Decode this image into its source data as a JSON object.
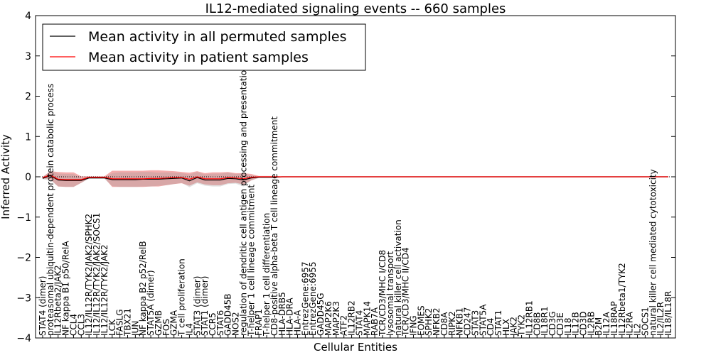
{
  "chart_data": {
    "type": "line",
    "title": "IL12-mediated signaling events -- 660 samples",
    "xlabel": "Cellular Entities",
    "ylabel": "Inferred Activity",
    "ylim": [
      -4,
      4
    ],
    "yticks": [
      "−4",
      "−3",
      "−2",
      "−1",
      "0",
      "1",
      "2",
      "3",
      "4"
    ],
    "legend_position": "top-left",
    "categories": [
      "STAT4 (dimer)",
      "proteasomal ubiquitin-dependent protein catabolic process",
      "IL12Rbeta2/JAK2",
      "NF kappa B1 p50/RelA",
      "CCL4",
      "CCL3",
      "IL12/IL12R/TYK2/JAK2/SPHK2",
      "IL12/IL12R/TYK2/JAK2/SOCS1",
      "IL12/IL12R/TYK2/JAK2",
      "LCK",
      "FASLG",
      "TBX21",
      "JUN",
      "NF kappa B2 p52/RelB",
      "STAT5A (dimer)",
      "GZMB",
      "FOS",
      "GZMA",
      "T cell proliferation",
      "IL4",
      "STAT3 (dimer)",
      "STAT1 (dimer)",
      "CCR5",
      "STAT6",
      "GADD45B",
      "NOS2",
      "regulation of dendritic cell antigen processing and presentation",
      "T-helper 1 cell lineage commitment",
      "FRAP1",
      "T-helper 1 cell differentiation",
      "CD8-positive alpha-beta T cell lineage commitment",
      "HLA-DRB5",
      "HLA-DRA",
      "HLA-A",
      "EntrezGene:6957",
      "EntrezGene:6955",
      "GADD45G",
      "MAP2K6",
      "MAP2K3",
      "ATF2",
      "IL12RB2",
      "STAT4",
      "MAPK14",
      "RAB7A",
      "TCR/CD3/MHC I/CD8",
      "lysosomal transport",
      "natural killer cell activation",
      "TCR/CD3/MHC II/CD4",
      "IFNG",
      "EOMES",
      "SPHK2",
      "NFKB2",
      "CD8A",
      "RIPK2",
      "NFKB1",
      "CD247",
      "STAT3",
      "STAT5A",
      "CD4",
      "STAT1",
      "HLX",
      "JAK2",
      "TYK2",
      "IL12RB1",
      "CD8B",
      "IL18R1",
      "CD3G",
      "CD3E",
      "IL18",
      "IL12B",
      "CD3D",
      "IL2RB",
      "B2M",
      "IL12A",
      "IL18RAP",
      "IL12Rbeta1/TYK2",
      "IL2RA",
      "IL2",
      "SOCS1",
      "natural killer cell mediated cytotoxicity",
      "IL2/IL2R",
      "IL18/IL18R"
    ],
    "series": [
      {
        "name": "Mean activity in all permuted samples",
        "color": "#000000",
        "values": [
          -0.04,
          0.03,
          -0.08,
          -0.09,
          -0.09,
          -0.09,
          -0.03,
          -0.03,
          -0.03,
          -0.07,
          -0.07,
          -0.07,
          -0.07,
          -0.06,
          -0.06,
          -0.06,
          -0.05,
          -0.04,
          -0.03,
          -0.1,
          -0.02,
          -0.08,
          -0.08,
          -0.08,
          -0.04,
          -0.05,
          -0.08,
          -0.03,
          -0.01,
          -0.01,
          -0.01,
          0.0,
          0.0,
          0.0,
          0.0,
          0.0,
          0.0,
          0.0,
          0.0,
          0.0,
          0.0,
          0.0,
          0.0,
          0.0,
          0.0,
          0.0,
          0.0,
          0.0,
          0.0,
          0.0,
          0.0,
          0.0,
          0.0,
          0.0,
          0.0,
          0.0,
          0.0,
          0.0,
          0.0,
          0.0,
          0.0,
          0.0,
          0.0,
          0.0,
          0.0,
          0.0,
          0.0,
          0.0,
          0.0,
          0.0,
          0.0,
          0.0,
          0.0,
          0.0,
          0.0,
          0.0,
          0.0,
          0.0,
          0.0,
          0.0,
          0.0,
          0.0
        ],
        "band": [
          0.02,
          0.12,
          0.16,
          0.16,
          0.16,
          0.06,
          0.02,
          0.02,
          0.02,
          0.16,
          0.18,
          0.18,
          0.18,
          0.18,
          0.18,
          0.16,
          0.16,
          0.14,
          0.12,
          0.16,
          0.14,
          0.14,
          0.16,
          0.16,
          0.14,
          0.12,
          0.16,
          0.06,
          0.02,
          0.02,
          0.02,
          0.01,
          0.01,
          0.01,
          0.01,
          0.01,
          0.01,
          0.01,
          0.01,
          0.01,
          0.01,
          0.01,
          0.01,
          0.01,
          0.01,
          0.01,
          0.01,
          0.01,
          0.01,
          0.01,
          0.01,
          0.01,
          0.01,
          0.01,
          0.01,
          0.01,
          0.01,
          0.01,
          0.01,
          0.01,
          0.01,
          0.01,
          0.01,
          0.01,
          0.01,
          0.01,
          0.01,
          0.01,
          0.01,
          0.01,
          0.01,
          0.01,
          0.01,
          0.01,
          0.01,
          0.01,
          0.01,
          0.01,
          0.01,
          0.01,
          0.01,
          0.01
        ]
      },
      {
        "name": "Mean activity in patient samples",
        "color": "#ff0000",
        "values": [
          -0.02,
          0.04,
          -0.06,
          -0.07,
          -0.07,
          -0.07,
          -0.01,
          -0.01,
          -0.01,
          -0.05,
          -0.05,
          -0.05,
          -0.05,
          -0.05,
          -0.04,
          -0.04,
          -0.03,
          -0.02,
          -0.02,
          -0.06,
          0.0,
          -0.05,
          -0.05,
          -0.05,
          -0.02,
          -0.03,
          -0.05,
          -0.01,
          0.0,
          0.0,
          0.0,
          0.0,
          0.0,
          0.0,
          0.0,
          0.0,
          0.0,
          0.0,
          0.0,
          0.0,
          0.0,
          0.0,
          0.0,
          0.0,
          0.0,
          0.0,
          0.0,
          0.0,
          0.0,
          0.0,
          0.0,
          0.0,
          0.0,
          0.0,
          0.0,
          0.0,
          0.0,
          0.0,
          0.0,
          0.0,
          0.0,
          0.0,
          0.0,
          0.0,
          0.0,
          0.0,
          0.0,
          0.0,
          0.0,
          0.0,
          0.0,
          0.0,
          0.0,
          0.0,
          0.0,
          0.0,
          0.0,
          0.0,
          0.0,
          0.0,
          0.0,
          0.0
        ],
        "band": [
          0.02,
          0.1,
          0.18,
          0.18,
          0.18,
          0.08,
          0.02,
          0.02,
          0.02,
          0.2,
          0.2,
          0.2,
          0.2,
          0.2,
          0.2,
          0.2,
          0.18,
          0.16,
          0.14,
          0.16,
          0.14,
          0.14,
          0.16,
          0.16,
          0.14,
          0.12,
          0.14,
          0.08,
          0.02,
          0.02,
          0.02,
          0.01,
          0.01,
          0.01,
          0.01,
          0.01,
          0.01,
          0.01,
          0.01,
          0.01,
          0.01,
          0.01,
          0.01,
          0.01,
          0.01,
          0.01,
          0.01,
          0.01,
          0.01,
          0.01,
          0.01,
          0.01,
          0.01,
          0.01,
          0.01,
          0.01,
          0.01,
          0.01,
          0.01,
          0.01,
          0.01,
          0.01,
          0.01,
          0.01,
          0.01,
          0.01,
          0.01,
          0.01,
          0.01,
          0.01,
          0.01,
          0.01,
          0.01,
          0.01,
          0.01,
          0.01,
          0.01,
          0.01,
          0.01,
          0.01,
          0.01,
          0.01
        ]
      }
    ]
  }
}
